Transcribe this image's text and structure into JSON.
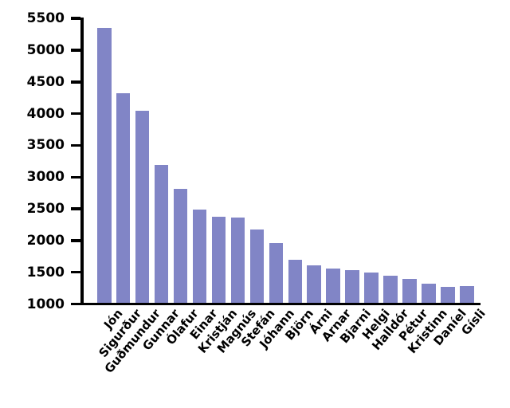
{
  "chart_data": {
    "type": "bar",
    "title": "",
    "xlabel": "",
    "ylabel": "",
    "categories": [
      "Jón",
      "Sigurður",
      "Guðmundur",
      "Gunnar",
      "Ólafur",
      "Einar",
      "Kristján",
      "Magnús",
      "Stefán",
      "Jóhann",
      "Björn",
      "Árni",
      "Arnar",
      "Bjarni",
      "Helgi",
      "Halldór",
      "Pétur",
      "Kristinn",
      "Daníel",
      "Gísli"
    ],
    "values": [
      5350,
      4320,
      4040,
      3190,
      2820,
      2490,
      2370,
      2360,
      2170,
      1960,
      1700,
      1610,
      1560,
      1530,
      1500,
      1450,
      1400,
      1320,
      1270,
      1280
    ],
    "yticks": [
      1000,
      1500,
      2000,
      2500,
      3000,
      3500,
      4000,
      4500,
      5000,
      5500
    ],
    "ylim": [
      1000,
      5500
    ],
    "grid": false,
    "legend": null,
    "bar_color": "#8185c6",
    "axis_color": "#000000",
    "tick_label_rotation_deg": 50
  }
}
